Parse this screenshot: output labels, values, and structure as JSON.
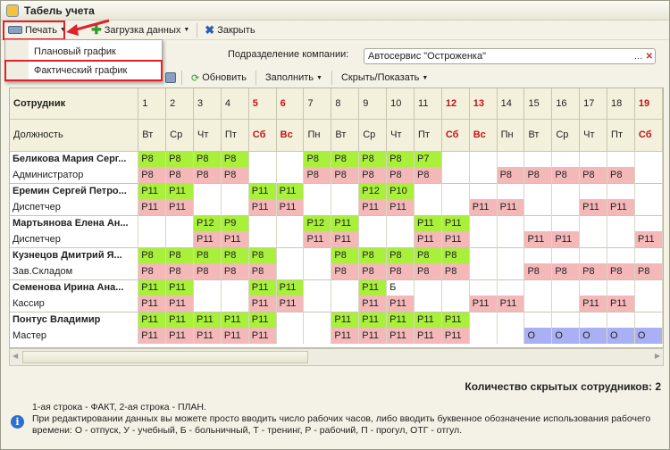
{
  "window": {
    "title": "Табель учета"
  },
  "toolbar": {
    "print": "Печать",
    "load": "Загрузка данных",
    "close": "Закрыть"
  },
  "print_menu": {
    "items": [
      "Плановый график",
      "Фактический график"
    ]
  },
  "form": {
    "division_label": "Подразделение компании:",
    "division_value": "Автосервис \"Остроженка\""
  },
  "toolbar2": {
    "refresh": "Обновить",
    "fill": "Заполнить",
    "hide_show": "Скрыть/Показать"
  },
  "table": {
    "col_employee": "Сотрудник",
    "col_position": "Должность",
    "days": [
      "1",
      "2",
      "3",
      "4",
      "5",
      "6",
      "7",
      "8",
      "9",
      "10",
      "11",
      "12",
      "13",
      "14",
      "15",
      "16",
      "17",
      "18",
      "19"
    ],
    "weekdays": [
      "Вт",
      "Ср",
      "Чт",
      "Пт",
      "Сб",
      "Вс",
      "Пн",
      "Вт",
      "Ср",
      "Чт",
      "Пт",
      "Сб",
      "Вс",
      "Пн",
      "Вт",
      "Ср",
      "Чт",
      "Пт",
      "Сб"
    ],
    "weekend_days": [
      "5",
      "6",
      "12",
      "13",
      "19"
    ],
    "employees": [
      {
        "name": "Беликова Мария Серг...",
        "position": "Администратор",
        "fact": [
          "Р8",
          "Р8",
          "Р8",
          "Р8",
          "",
          "",
          "Р8",
          "Р8",
          "Р8",
          "Р8",
          "Р7",
          "",
          "",
          "",
          "",
          "",
          "",
          "",
          ""
        ],
        "plan": [
          "Р8",
          "Р8",
          "Р8",
          "Р8",
          "",
          "",
          "Р8",
          "Р8",
          "Р8",
          "Р8",
          "Р8",
          "",
          "",
          "Р8",
          "Р8",
          "Р8",
          "Р8",
          "Р8",
          ""
        ]
      },
      {
        "name": "Еремин Сергей Петро...",
        "position": "Диспетчер",
        "fact": [
          "Р11",
          "Р11",
          "",
          "",
          "Р11",
          "Р11",
          "",
          "",
          "Р12",
          "Р10",
          "",
          "",
          "",
          "",
          "",
          "",
          "",
          "",
          ""
        ],
        "plan": [
          "Р11",
          "Р11",
          "",
          "",
          "Р11",
          "Р11",
          "",
          "",
          "Р11",
          "Р11",
          "",
          "",
          "Р11",
          "Р11",
          "",
          "",
          "Р11",
          "Р11",
          ""
        ]
      },
      {
        "name": "Мартьянова Елена Ан...",
        "position": "Диспетчер",
        "fact": [
          "",
          "",
          "Р12",
          "Р9",
          "",
          "",
          "Р12",
          "Р11",
          "",
          "",
          "Р11",
          "Р11",
          "",
          "",
          "",
          "",
          "",
          "",
          ""
        ],
        "plan": [
          "",
          "",
          "Р11",
          "Р11",
          "",
          "",
          "Р11",
          "Р11",
          "",
          "",
          "Р11",
          "Р11",
          "",
          "",
          "Р11",
          "Р11",
          "",
          "",
          "Р11"
        ]
      },
      {
        "name": "Кузнецов Дмитрий Я...",
        "position": "Зав.Складом",
        "fact": [
          "Р8",
          "Р8",
          "Р8",
          "Р8",
          "Р8",
          "",
          "",
          "Р8",
          "Р8",
          "Р8",
          "Р8",
          "Р8",
          "",
          "",
          "",
          "",
          "",
          "",
          ""
        ],
        "plan": [
          "Р8",
          "Р8",
          "Р8",
          "Р8",
          "Р8",
          "",
          "",
          "Р8",
          "Р8",
          "Р8",
          "Р8",
          "Р8",
          "",
          "",
          "Р8",
          "Р8",
          "Р8",
          "Р8",
          "Р8"
        ]
      },
      {
        "name": "Семенова Ирина Ана...",
        "position": "Кассир",
        "fact": [
          "Р11",
          "Р11",
          "",
          "",
          "Р11",
          "Р11",
          "",
          "",
          "Р11",
          "Б",
          "",
          "",
          "",
          "",
          "",
          "",
          "",
          "",
          ""
        ],
        "plan": [
          "Р11",
          "Р11",
          "",
          "",
          "Р11",
          "Р11",
          "",
          "",
          "Р11",
          "Р11",
          "",
          "",
          "Р11",
          "Р11",
          "",
          "",
          "Р11",
          "Р11",
          ""
        ]
      },
      {
        "name": "Понтус Владимир",
        "position": "Мастер",
        "fact": [
          "Р11",
          "Р11",
          "Р11",
          "Р11",
          "Р11",
          "",
          "",
          "Р11",
          "Р11",
          "Р11",
          "Р11",
          "Р11",
          "",
          "",
          "",
          "",
          "",
          "",
          ""
        ],
        "plan": [
          "Р11",
          "Р11",
          "Р11",
          "Р11",
          "Р11",
          "",
          "",
          "Р11",
          "Р11",
          "Р11",
          "Р11",
          "Р11",
          "",
          "",
          "О",
          "О",
          "О",
          "О",
          "О"
        ]
      }
    ]
  },
  "footer": {
    "hidden_count": "Количество скрытых сотрудников: 2",
    "info_line1": "1-ая строка - ФАКТ, 2-ая строка - ПЛАН.",
    "info_line2": "При редактировании данных вы можете просто вводить число рабочих часов, либо вводить буквенное обозначение использования рабочего времени: О - отпуск, У - учебный, Б - больничный, Т - тренинг, Р - рабочий, П - прогул, ОТГ - отгул."
  },
  "colors": {
    "fact": "#a8f03a",
    "plan": "#f4b8b8",
    "vacation": "#aab0f4",
    "highlight": "#e0202a",
    "weekend_text": "#c0141c"
  }
}
